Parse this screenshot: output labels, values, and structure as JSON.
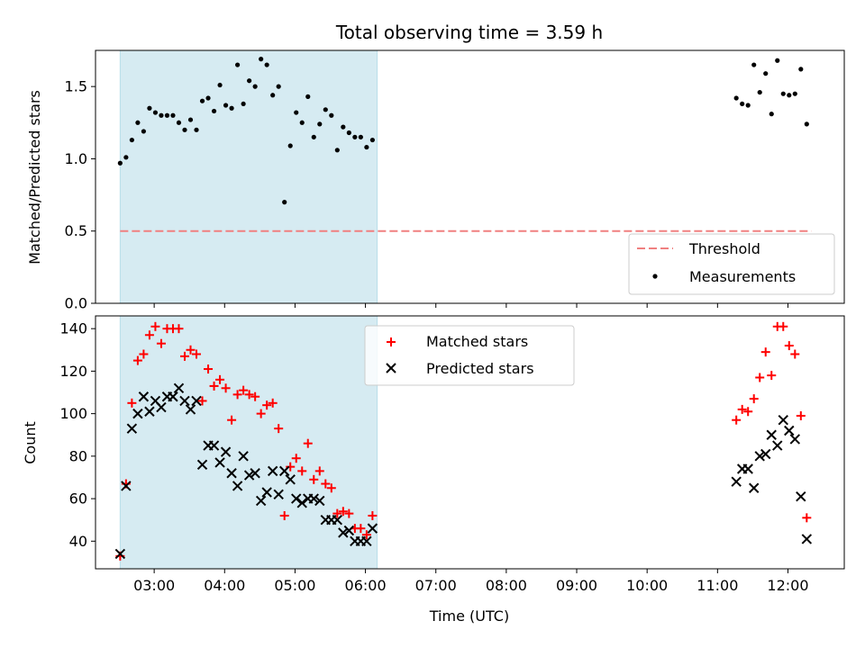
{
  "title": "Total observing time = 3.59 h",
  "colors": {
    "highlight": "#add8e6",
    "threshold": "#f08080",
    "measurement": "#000000",
    "matched": "#ff0000",
    "predicted": "#000000"
  },
  "chart_data": [
    {
      "type": "scatter",
      "ylabel": "Matched/Predicted stars",
      "ylim": [
        0,
        1.75
      ],
      "yticks": [
        "0.0",
        "0.5",
        "1.0",
        "1.5"
      ],
      "xlim": [
        "02:10",
        "12:48"
      ],
      "xtick_labels_shown": false,
      "highlight_span": [
        "02:31",
        "06:10"
      ],
      "threshold": {
        "name": "Threshold",
        "value": 0.5,
        "x_range": [
          "02:31",
          "12:20"
        ],
        "style": "dashed"
      },
      "legend": {
        "position": "lower right",
        "entries": [
          "Threshold",
          "Measurements"
        ]
      },
      "series": [
        {
          "name": "Measurements",
          "marker": "dot",
          "points": [
            [
              "02:31",
              0.97
            ],
            [
              "02:36",
              1.01
            ],
            [
              "02:41",
              1.13
            ],
            [
              "02:46",
              1.25
            ],
            [
              "02:51",
              1.19
            ],
            [
              "02:56",
              1.35
            ],
            [
              "03:01",
              1.32
            ],
            [
              "03:06",
              1.3
            ],
            [
              "03:11",
              1.3
            ],
            [
              "03:16",
              1.3
            ],
            [
              "03:21",
              1.25
            ],
            [
              "03:26",
              1.2
            ],
            [
              "03:31",
              1.27
            ],
            [
              "03:36",
              1.2
            ],
            [
              "03:41",
              1.4
            ],
            [
              "03:46",
              1.42
            ],
            [
              "03:51",
              1.33
            ],
            [
              "03:56",
              1.51
            ],
            [
              "04:01",
              1.37
            ],
            [
              "04:06",
              1.35
            ],
            [
              "04:11",
              1.65
            ],
            [
              "04:16",
              1.38
            ],
            [
              "04:21",
              1.54
            ],
            [
              "04:26",
              1.5
            ],
            [
              "04:31",
              1.69
            ],
            [
              "04:36",
              1.65
            ],
            [
              "04:41",
              1.44
            ],
            [
              "04:46",
              1.5
            ],
            [
              "04:51",
              0.7
            ],
            [
              "04:56",
              1.09
            ],
            [
              "05:01",
              1.32
            ],
            [
              "05:06",
              1.25
            ],
            [
              "05:11",
              1.43
            ],
            [
              "05:16",
              1.15
            ],
            [
              "05:21",
              1.24
            ],
            [
              "05:26",
              1.34
            ],
            [
              "05:31",
              1.3
            ],
            [
              "05:36",
              1.06
            ],
            [
              "05:41",
              1.22
            ],
            [
              "05:46",
              1.18
            ],
            [
              "05:51",
              1.15
            ],
            [
              "05:56",
              1.15
            ],
            [
              "06:01",
              1.08
            ],
            [
              "06:06",
              1.13
            ],
            [
              "11:16",
              1.42
            ],
            [
              "11:21",
              1.38
            ],
            [
              "11:26",
              1.37
            ],
            [
              "11:31",
              1.65
            ],
            [
              "11:36",
              1.46
            ],
            [
              "11:41",
              1.59
            ],
            [
              "11:46",
              1.31
            ],
            [
              "11:51",
              1.68
            ],
            [
              "11:56",
              1.45
            ],
            [
              "12:01",
              1.44
            ],
            [
              "12:06",
              1.45
            ],
            [
              "12:11",
              1.62
            ],
            [
              "12:16",
              1.24
            ]
          ]
        }
      ]
    },
    {
      "type": "scatter",
      "xlabel": "Time (UTC)",
      "ylabel": "Count",
      "ylim": [
        27,
        146
      ],
      "yticks": [
        "40",
        "60",
        "80",
        "100",
        "120",
        "140"
      ],
      "xlim": [
        "02:10",
        "12:48"
      ],
      "xticks": [
        "03:00",
        "04:00",
        "05:00",
        "06:00",
        "07:00",
        "08:00",
        "09:00",
        "10:00",
        "11:00",
        "12:00"
      ],
      "highlight_span": [
        "02:31",
        "06:10"
      ],
      "legend": {
        "position": "upper center",
        "entries": [
          "Matched stars",
          "Predicted stars"
        ]
      },
      "series": [
        {
          "name": "Matched stars",
          "marker": "plus",
          "points": [
            [
              "02:31",
              33
            ],
            [
              "02:36",
              67
            ],
            [
              "02:41",
              105
            ],
            [
              "02:46",
              125
            ],
            [
              "02:51",
              128
            ],
            [
              "02:56",
              137
            ],
            [
              "03:01",
              141
            ],
            [
              "03:06",
              133
            ],
            [
              "03:11",
              140
            ],
            [
              "03:16",
              140
            ],
            [
              "03:21",
              140
            ],
            [
              "03:26",
              127
            ],
            [
              "03:31",
              130
            ],
            [
              "03:36",
              128
            ],
            [
              "03:41",
              106
            ],
            [
              "03:46",
              121
            ],
            [
              "03:51",
              113
            ],
            [
              "03:56",
              116
            ],
            [
              "04:01",
              112
            ],
            [
              "04:06",
              97
            ],
            [
              "04:11",
              109
            ],
            [
              "04:16",
              111
            ],
            [
              "04:21",
              109
            ],
            [
              "04:26",
              108
            ],
            [
              "04:31",
              100
            ],
            [
              "04:36",
              104
            ],
            [
              "04:41",
              105
            ],
            [
              "04:46",
              93
            ],
            [
              "04:51",
              52
            ],
            [
              "04:56",
              75
            ],
            [
              "05:01",
              79
            ],
            [
              "05:06",
              73
            ],
            [
              "05:11",
              86
            ],
            [
              "05:16",
              69
            ],
            [
              "05:21",
              73
            ],
            [
              "05:26",
              67
            ],
            [
              "05:31",
              65
            ],
            [
              "05:36",
              53
            ],
            [
              "05:41",
              54
            ],
            [
              "05:46",
              53
            ],
            [
              "05:51",
              46
            ],
            [
              "05:56",
              46
            ],
            [
              "06:01",
              43
            ],
            [
              "06:06",
              52
            ],
            [
              "11:16",
              97
            ],
            [
              "11:21",
              102
            ],
            [
              "11:26",
              101
            ],
            [
              "11:31",
              107
            ],
            [
              "11:36",
              117
            ],
            [
              "11:41",
              129
            ],
            [
              "11:46",
              118
            ],
            [
              "11:51",
              141
            ],
            [
              "11:56",
              141
            ],
            [
              "12:01",
              132
            ],
            [
              "12:06",
              128
            ],
            [
              "12:11",
              99
            ],
            [
              "12:16",
              51
            ]
          ]
        },
        {
          "name": "Predicted stars",
          "marker": "x",
          "points": [
            [
              "02:31",
              34
            ],
            [
              "02:36",
              66
            ],
            [
              "02:41",
              93
            ],
            [
              "02:46",
              100
            ],
            [
              "02:51",
              108
            ],
            [
              "02:56",
              101
            ],
            [
              "03:01",
              106
            ],
            [
              "03:06",
              103
            ],
            [
              "03:11",
              108
            ],
            [
              "03:16",
              108
            ],
            [
              "03:21",
              112
            ],
            [
              "03:26",
              106
            ],
            [
              "03:31",
              102
            ],
            [
              "03:36",
              106
            ],
            [
              "03:41",
              76
            ],
            [
              "03:46",
              85
            ],
            [
              "03:51",
              85
            ],
            [
              "03:56",
              77
            ],
            [
              "04:01",
              82
            ],
            [
              "04:06",
              72
            ],
            [
              "04:11",
              66
            ],
            [
              "04:16",
              80
            ],
            [
              "04:21",
              71
            ],
            [
              "04:26",
              72
            ],
            [
              "04:31",
              59
            ],
            [
              "04:36",
              63
            ],
            [
              "04:41",
              73
            ],
            [
              "04:46",
              62
            ],
            [
              "04:51",
              73
            ],
            [
              "04:56",
              69
            ],
            [
              "05:01",
              60
            ],
            [
              "05:06",
              58
            ],
            [
              "05:11",
              60
            ],
            [
              "05:16",
              60
            ],
            [
              "05:21",
              59
            ],
            [
              "05:26",
              50
            ],
            [
              "05:31",
              50
            ],
            [
              "05:36",
              50
            ],
            [
              "05:41",
              44
            ],
            [
              "05:46",
              45
            ],
            [
              "05:51",
              40
            ],
            [
              "05:56",
              40
            ],
            [
              "06:01",
              40
            ],
            [
              "06:06",
              46
            ],
            [
              "11:16",
              68
            ],
            [
              "11:21",
              74
            ],
            [
              "11:26",
              74
            ],
            [
              "11:31",
              65
            ],
            [
              "11:36",
              80
            ],
            [
              "11:41",
              81
            ],
            [
              "11:46",
              90
            ],
            [
              "11:51",
              85
            ],
            [
              "11:56",
              97
            ],
            [
              "12:01",
              92
            ],
            [
              "12:06",
              88
            ],
            [
              "12:11",
              61
            ],
            [
              "12:16",
              41
            ]
          ]
        }
      ]
    }
  ]
}
